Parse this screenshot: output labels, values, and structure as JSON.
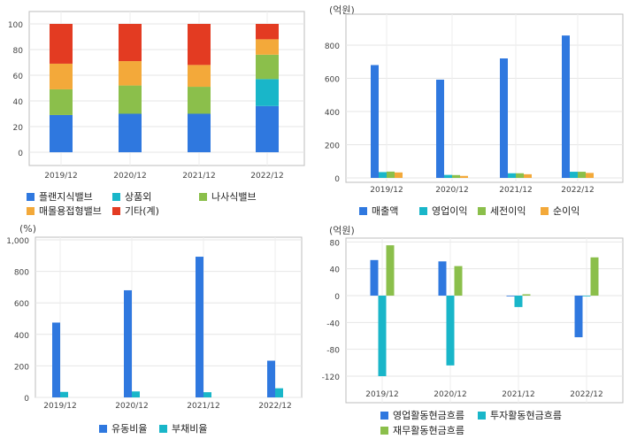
{
  "chart_data": [
    {
      "type": "bar",
      "stacked": true,
      "title": "",
      "unit": "",
      "categories": [
        "2019/12",
        "2020/12",
        "2021/12",
        "2022/12"
      ],
      "ylim": [
        0,
        100
      ],
      "yticks": [
        0,
        20,
        40,
        60,
        80,
        100
      ],
      "grid": true,
      "legend_position": "bottom",
      "series": [
        {
          "name": "플랜지식밸브",
          "color": "#2f78df",
          "values": [
            29,
            30,
            30,
            36
          ]
        },
        {
          "name": "상품외",
          "color": "#19b6c9",
          "values": [
            0,
            0,
            0,
            21
          ]
        },
        {
          "name": "나사식밸브",
          "color": "#8bbf4b",
          "values": [
            20,
            22,
            21,
            19
          ]
        },
        {
          "name": "매몰용접형밸브",
          "color": "#f3a93a",
          "values": [
            20,
            19,
            17,
            12
          ]
        },
        {
          "name": "기타(계)",
          "color": "#e33b22",
          "values": [
            31,
            29,
            32,
            12
          ]
        }
      ]
    },
    {
      "type": "bar",
      "title": "",
      "unit": "(억원)",
      "categories": [
        "2019/12",
        "2020/12",
        "2021/12",
        "2022/12"
      ],
      "ylim": [
        0,
        900
      ],
      "yticks": [
        0,
        200,
        400,
        600,
        800
      ],
      "grid": true,
      "legend_position": "bottom",
      "series": [
        {
          "name": "매출액",
          "color": "#2f78df",
          "values": [
            680,
            592,
            720,
            858
          ]
        },
        {
          "name": "영업이익",
          "color": "#19b6c9",
          "values": [
            35,
            18,
            28,
            37
          ]
        },
        {
          "name": "세전이익",
          "color": "#8bbf4b",
          "values": [
            38,
            17,
            28,
            37
          ]
        },
        {
          "name": "순이익",
          "color": "#f3a93a",
          "values": [
            33,
            12,
            22,
            30
          ]
        }
      ]
    },
    {
      "type": "bar",
      "title": "",
      "unit": "(%)",
      "categories": [
        "2019/12",
        "2020/12",
        "2021/12",
        "2022/12"
      ],
      "ylim": [
        0,
        1000
      ],
      "yticks": [
        0,
        200,
        400,
        600,
        800,
        1000
      ],
      "ytick_labels": [
        "0",
        "200",
        "400",
        "600",
        "800",
        "1,000"
      ],
      "grid": true,
      "legend_position": "bottom",
      "series": [
        {
          "name": "유동비율",
          "color": "#2f78df",
          "values": [
            475,
            680,
            893,
            233
          ]
        },
        {
          "name": "부채비율",
          "color": "#19b6c9",
          "values": [
            35,
            38,
            33,
            58
          ]
        }
      ]
    },
    {
      "type": "bar",
      "title": "",
      "unit": "(억원)",
      "categories": [
        "2019/12",
        "2020/12",
        "2021/12",
        "2022/12"
      ],
      "ylim": [
        -130,
        85
      ],
      "yticks": [
        -120,
        -80,
        -40,
        0,
        40,
        80
      ],
      "grid": true,
      "legend_position": "bottom",
      "series": [
        {
          "name": "영업활동현금흐름",
          "color": "#2f78df",
          "values": [
            53,
            51,
            -1,
            -62
          ]
        },
        {
          "name": "투자활동현금흐름",
          "color": "#19b6c9",
          "values": [
            -120,
            -104,
            -17,
            0
          ]
        },
        {
          "name": "재무활동현금흐름",
          "color": "#8bbf4b",
          "values": [
            75,
            44,
            2,
            57
          ]
        }
      ]
    }
  ]
}
